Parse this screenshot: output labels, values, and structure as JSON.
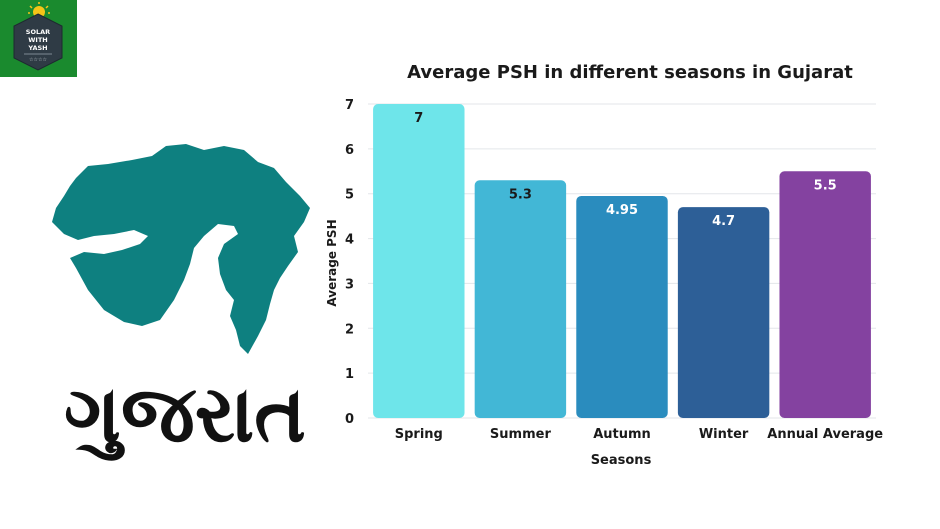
{
  "logo": {
    "line1": "SOLAR",
    "line2": "WITH",
    "line3": "YASH",
    "stars": "☆☆☆☆",
    "bg_color": "#1a8a2e"
  },
  "left_panel": {
    "state_name": "ગુજરાત",
    "map_color": "#0e8080"
  },
  "chart_data": {
    "type": "bar",
    "title": "Average PSH in different seasons in Gujarat",
    "xlabel": "Seasons",
    "ylabel": "Average PSH",
    "categories": [
      "Spring",
      "Summer",
      "Autumn",
      "Winter",
      "Annual Average"
    ],
    "values": [
      7,
      5.3,
      4.95,
      4.7,
      5.5
    ],
    "data_labels": [
      "7",
      "5.3",
      "4.95",
      "4.7",
      "5.5"
    ],
    "bar_colors": [
      "#6ee5ea",
      "#42b7d6",
      "#2a8cbe",
      "#2d5f97",
      "#8442a0"
    ],
    "label_colors": [
      "#1a1a1a",
      "#1a1a1a",
      "#ffffff",
      "#ffffff",
      "#ffffff"
    ],
    "ylim": [
      0,
      7
    ],
    "yticks": [
      "0",
      "1",
      "2",
      "3",
      "4",
      "5",
      "6",
      "7"
    ],
    "grid": true,
    "legend": "none"
  }
}
